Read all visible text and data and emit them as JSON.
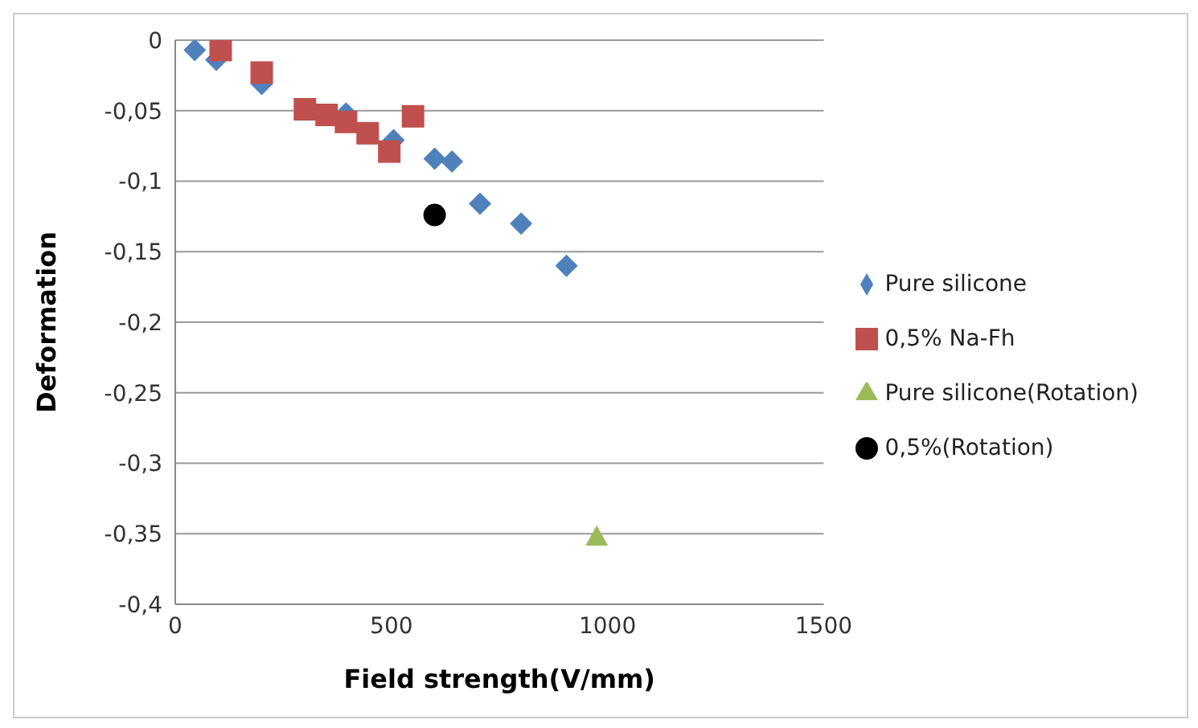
{
  "chart_data": {
    "type": "scatter",
    "xlabel": "Field strength(V/mm)",
    "ylabel": "Deformation",
    "xlim": [
      0,
      1500
    ],
    "xticks": [
      0,
      500,
      1000,
      1500
    ],
    "ylim": [
      -0.4,
      0
    ],
    "yticks": [
      {
        "value": -0.4,
        "label": "-0,4"
      },
      {
        "value": -0.35,
        "label": "-0,35"
      },
      {
        "value": -0.3,
        "label": "-0,3"
      },
      {
        "value": -0.25,
        "label": "-0,25"
      },
      {
        "value": -0.2,
        "label": "-0,2"
      },
      {
        "value": -0.15,
        "label": "-0,15"
      },
      {
        "value": -0.1,
        "label": "-0,1"
      },
      {
        "value": -0.05,
        "label": "-0,05"
      },
      {
        "value": 0,
        "label": "0"
      }
    ],
    "grid": "y",
    "legend": "right",
    "series": [
      {
        "name": "Pure silicone",
        "color": "#4f81bd",
        "marker": "diamond",
        "x": [
          45,
          95,
          200,
          340,
          395,
          505,
          600,
          640,
          705,
          800,
          905
        ],
        "values": [
          -0.007,
          -0.014,
          -0.031,
          null,
          -0.052,
          -0.071,
          -0.084,
          -0.086,
          -0.116,
          -0.13,
          -0.16
        ]
      },
      {
        "name": "0,5% Na-Fh",
        "color": "#c0504d",
        "marker": "square",
        "x": [
          105,
          200,
          300,
          350,
          395,
          445,
          495,
          550
        ],
        "values": [
          -0.007,
          -0.023,
          -0.049,
          -0.053,
          -0.058,
          -0.066,
          -0.079,
          -0.054
        ]
      },
      {
        "name": "Pure silicone(Rotation)",
        "color": "#9bbb59",
        "marker": "triangle",
        "x": [
          975
        ],
        "values": [
          -0.352
        ]
      },
      {
        "name": "0,5%(Rotation)",
        "color": "#000000",
        "marker": "circle",
        "x": [
          600
        ],
        "values": [
          -0.124
        ]
      }
    ]
  }
}
